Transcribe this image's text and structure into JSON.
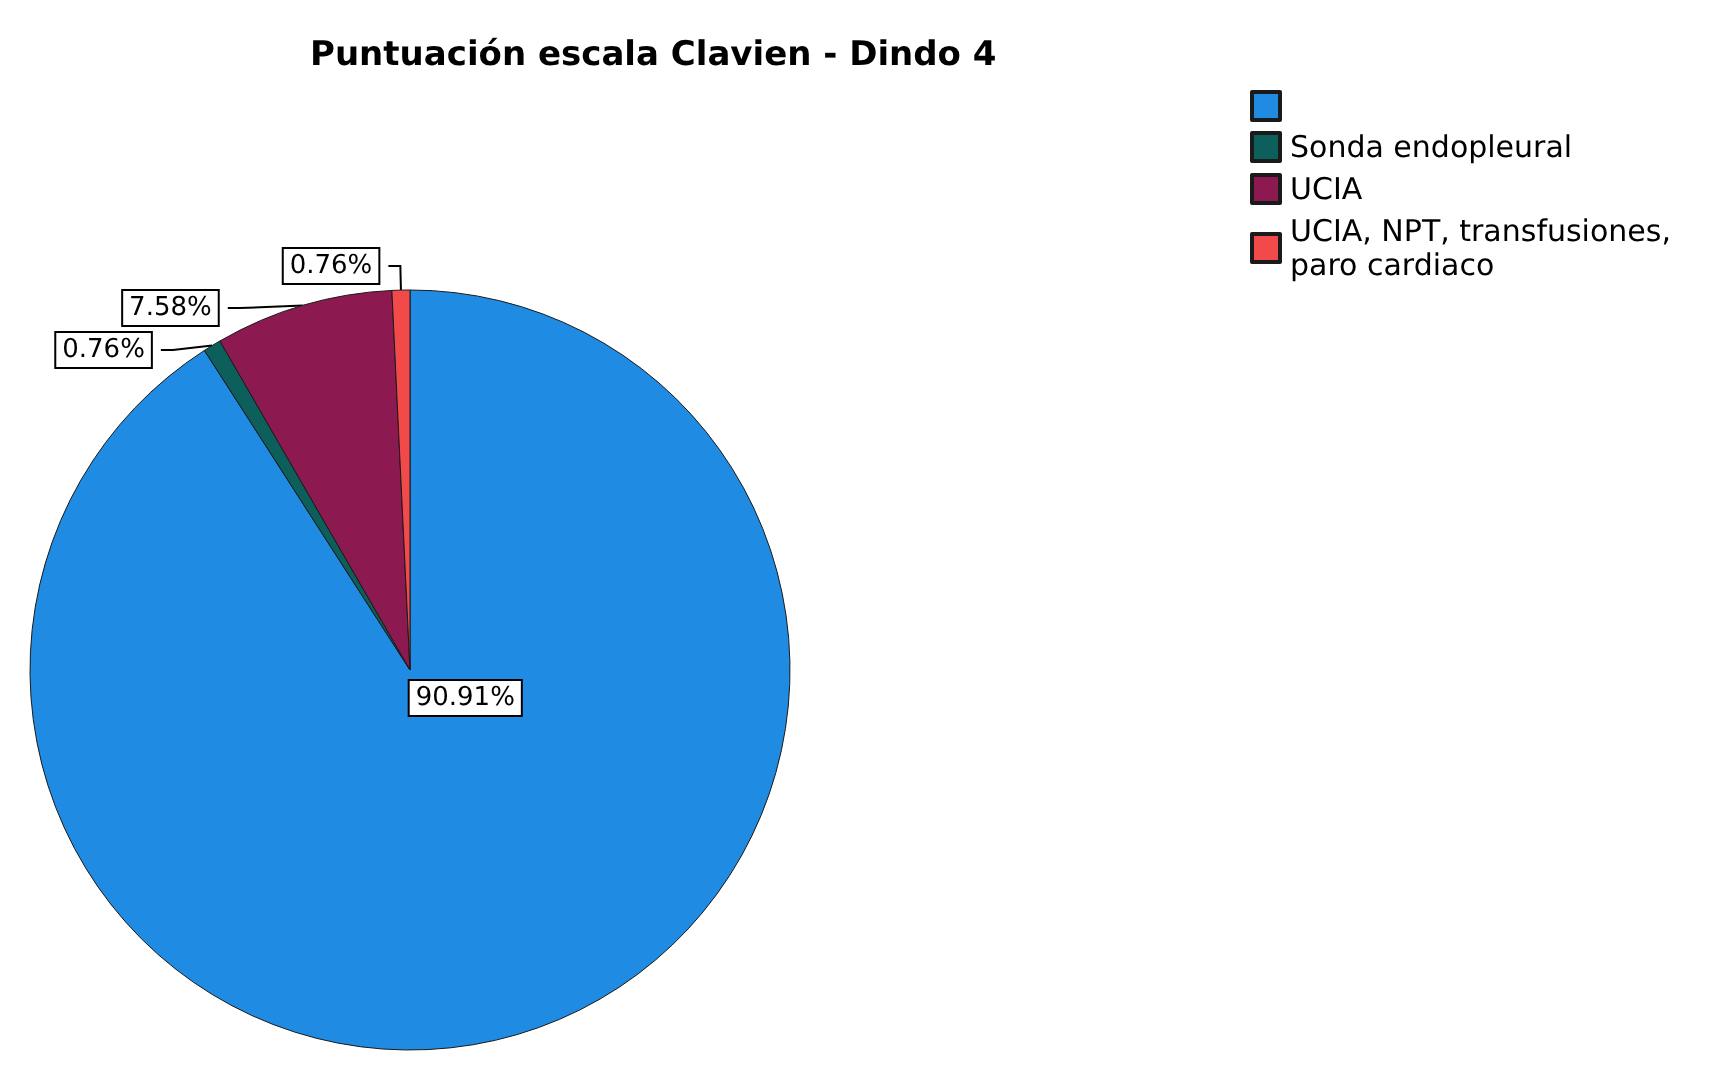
{
  "chart_data": {
    "type": "pie",
    "title": "Puntuación escala Clavien - Dindo 4",
    "categories": [
      null,
      "Sonda endopleural",
      "UCIA",
      "UCIA, NPT, transfusiones, paro cardiaco"
    ],
    "values": [
      90.91,
      0.76,
      7.58,
      0.76
    ],
    "colors": [
      "#1f8be2",
      "#0d5f5b",
      "#8c1a50",
      "#f24a4a"
    ],
    "value_labels": [
      "90.91%",
      "0.76%",
      "7.58%",
      "0.76%"
    ],
    "legend": "top right"
  }
}
